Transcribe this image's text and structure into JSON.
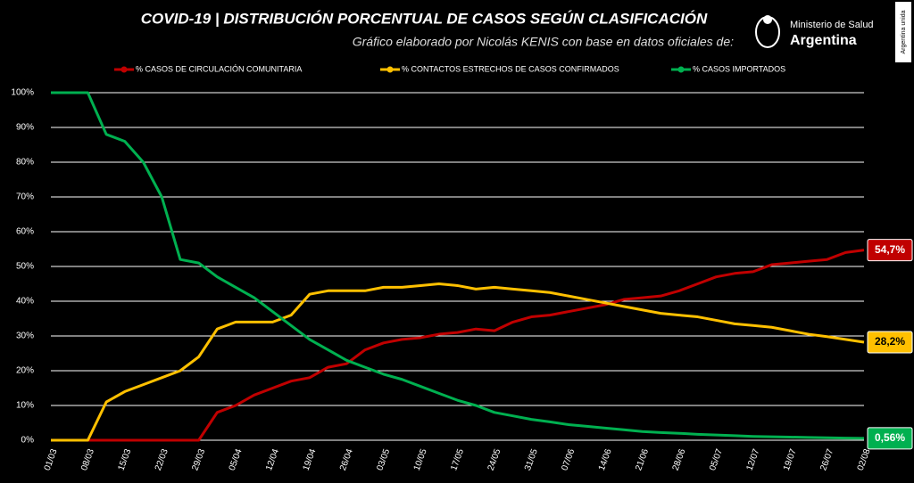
{
  "chart_data": {
    "type": "line",
    "title": "COVID-19  |  DISTRIBUCIÓN PORCENTUAL DE CASOS SEGÚN CLASIFICACIÓN",
    "subtitle": "Gráfico elaborado por Nicolás KENIS con base en datos oficiales de:",
    "logo": {
      "line1": "Ministerio de Salud",
      "line2": "Argentina",
      "side": "Argentina unida"
    },
    "categories": [
      "01/03",
      null,
      "08/03",
      null,
      "15/03",
      null,
      "22/03",
      null,
      "29/03",
      null,
      "05/04",
      null,
      "12/04",
      null,
      "19/04",
      null,
      "26/04",
      null,
      "03/05",
      null,
      "10/05",
      null,
      "17/05",
      null,
      "24/05",
      null,
      "31/05",
      null,
      "07/06",
      null,
      "14/06",
      null,
      "21/06",
      null,
      "28/06",
      null,
      "05/07",
      null,
      "12/07",
      null,
      "19/07",
      null,
      "26/07",
      null,
      "02/08"
    ],
    "series": [
      {
        "name": "% CASOS DE CIRCULACIÓN COMUNITARIA",
        "color": "#c00000",
        "values": [
          0,
          0,
          0,
          0,
          0,
          0,
          0,
          0,
          0,
          8,
          10,
          13,
          15,
          17,
          18,
          21,
          22,
          26,
          28,
          29,
          29.5,
          30.5,
          31,
          32,
          31.5,
          34,
          35.5,
          36,
          37,
          38,
          39,
          40.5,
          41,
          41.5,
          43,
          45,
          47,
          48,
          48.5,
          50.5,
          51,
          51.5,
          52,
          54,
          54.7
        ],
        "value_labels": [
          null,
          null,
          null,
          null,
          null,
          null,
          null,
          null,
          null,
          null,
          null,
          null,
          null,
          null,
          null,
          null,
          null,
          null,
          null,
          null,
          null,
          null,
          null,
          null,
          null,
          null,
          null,
          null,
          null,
          null,
          null,
          null,
          null,
          null,
          null,
          null,
          null,
          null,
          null,
          null,
          null,
          null,
          null,
          null,
          "54,7%"
        ]
      },
      {
        "name": "% CONTACTOS ESTRECHOS DE CASOS CONFIRMADOS",
        "color": "#ffc000",
        "values": [
          0,
          0,
          0,
          11,
          14,
          16,
          18,
          20,
          24,
          32,
          34,
          34,
          34,
          36,
          42,
          43,
          43,
          43,
          44,
          44,
          44.5,
          45,
          44.5,
          43.5,
          44,
          43.5,
          43,
          42.5,
          41.5,
          40.5,
          39.5,
          38.5,
          37.5,
          36.5,
          36,
          35.5,
          34.5,
          33.5,
          33,
          32.5,
          31.5,
          30.5,
          29.8,
          29,
          28.2
        ],
        "value_labels": [
          null,
          null,
          null,
          null,
          null,
          null,
          null,
          null,
          null,
          null,
          null,
          null,
          null,
          null,
          null,
          null,
          null,
          null,
          null,
          null,
          null,
          null,
          null,
          null,
          null,
          null,
          null,
          null,
          null,
          null,
          null,
          null,
          null,
          null,
          null,
          null,
          null,
          null,
          null,
          null,
          null,
          null,
          null,
          null,
          "28,2%"
        ]
      },
      {
        "name": "% CASOS IMPORTADOS",
        "color": "#00b050",
        "values": [
          100,
          100,
          100,
          88,
          86,
          80,
          70,
          52,
          51,
          47,
          44,
          41,
          37,
          33,
          29,
          26,
          23,
          21,
          19,
          17.5,
          15.5,
          13.5,
          11.5,
          10,
          8,
          7,
          6,
          5.3,
          4.5,
          4,
          3.5,
          3,
          2.5,
          2.2,
          2,
          1.7,
          1.5,
          1.3,
          1.1,
          1,
          0.9,
          0.8,
          0.7,
          0.6,
          0.56
        ],
        "value_labels": [
          null,
          null,
          null,
          null,
          null,
          null,
          null,
          null,
          null,
          null,
          null,
          null,
          null,
          null,
          null,
          null,
          null,
          null,
          null,
          null,
          null,
          null,
          null,
          null,
          null,
          null,
          null,
          null,
          null,
          null,
          null,
          null,
          null,
          null,
          null,
          null,
          null,
          null,
          null,
          null,
          null,
          null,
          null,
          null,
          "0,56%"
        ]
      }
    ],
    "ylim": [
      0,
      100
    ],
    "yticks": [
      {
        "value": 0,
        "label": "0%"
      },
      {
        "value": 10,
        "label": "10%"
      },
      {
        "value": 20,
        "label": "20%"
      },
      {
        "value": 30,
        "label": "30%"
      },
      {
        "value": 40,
        "label": "40%"
      },
      {
        "value": 50,
        "label": "50%"
      },
      {
        "value": 60,
        "label": "60%"
      },
      {
        "value": 70,
        "label": "70%"
      },
      {
        "value": 80,
        "label": "80%"
      },
      {
        "value": 90,
        "label": "90%"
      },
      {
        "value": 100,
        "label": "100%"
      }
    ],
    "grid": true
  }
}
